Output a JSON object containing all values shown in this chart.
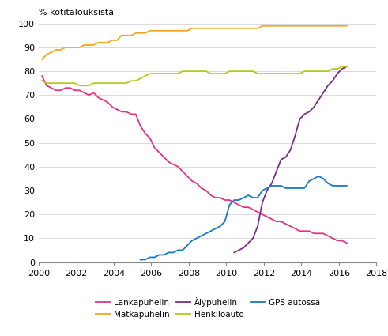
{
  "title": "% kotitalouksista",
  "xlim": [
    2000,
    2018
  ],
  "ylim": [
    0,
    100
  ],
  "xticks": [
    2000,
    2002,
    2004,
    2006,
    2008,
    2010,
    2012,
    2014,
    2016,
    2018
  ],
  "yticks": [
    0,
    10,
    20,
    30,
    40,
    50,
    60,
    70,
    80,
    90,
    100
  ],
  "legend": [
    "Lankapuhelin",
    "Matkapuhelin",
    "Älypuhelin",
    "Henkilöauto",
    "GPS autossa"
  ],
  "colors": {
    "Lankapuhelin": "#e8318a",
    "Matkapuhelin": "#f5a623",
    "Alypuhelin": "#7b2d8b",
    "Henkiloauto": "#b5c918",
    "GPS": "#1a78bf"
  },
  "Lankapuhelin": {
    "x": [
      2000.17,
      2000.42,
      2000.67,
      2000.92,
      2001.17,
      2001.42,
      2001.67,
      2001.92,
      2002.17,
      2002.42,
      2002.67,
      2002.92,
      2003.17,
      2003.42,
      2003.67,
      2003.92,
      2004.17,
      2004.42,
      2004.67,
      2004.92,
      2005.17,
      2005.42,
      2005.67,
      2005.92,
      2006.17,
      2006.42,
      2006.67,
      2006.92,
      2007.17,
      2007.42,
      2007.67,
      2007.92,
      2008.17,
      2008.42,
      2008.67,
      2008.92,
      2009.17,
      2009.42,
      2009.67,
      2009.92,
      2010.17,
      2010.42,
      2010.67,
      2010.92,
      2011.17,
      2011.42,
      2011.67,
      2011.92,
      2012.17,
      2012.42,
      2012.67,
      2012.92,
      2013.17,
      2013.42,
      2013.67,
      2013.92,
      2014.17,
      2014.42,
      2014.67,
      2014.92,
      2015.17,
      2015.42,
      2015.67,
      2015.92,
      2016.17,
      2016.42
    ],
    "y": [
      78,
      74,
      73,
      72,
      72,
      73,
      73,
      72,
      72,
      71,
      70,
      71,
      69,
      68,
      67,
      65,
      64,
      63,
      63,
      62,
      62,
      57,
      54,
      52,
      48,
      46,
      44,
      42,
      41,
      40,
      38,
      36,
      34,
      33,
      31,
      30,
      28,
      27,
      27,
      26,
      26,
      25,
      24,
      23,
      23,
      22,
      21,
      20,
      19,
      18,
      17,
      17,
      16,
      15,
      14,
      13,
      13,
      13,
      12,
      12,
      12,
      11,
      10,
      9,
      9,
      8
    ]
  },
  "Matkapuhelin": {
    "x": [
      2000.17,
      2000.42,
      2000.67,
      2000.92,
      2001.17,
      2001.42,
      2001.67,
      2001.92,
      2002.17,
      2002.42,
      2002.67,
      2002.92,
      2003.17,
      2003.42,
      2003.67,
      2003.92,
      2004.17,
      2004.42,
      2004.67,
      2004.92,
      2005.17,
      2005.42,
      2005.67,
      2005.92,
      2006.17,
      2006.42,
      2006.67,
      2006.92,
      2007.17,
      2007.42,
      2007.67,
      2007.92,
      2008.17,
      2008.42,
      2008.67,
      2008.92,
      2009.17,
      2009.42,
      2009.67,
      2009.92,
      2010.17,
      2010.42,
      2010.67,
      2010.92,
      2011.17,
      2011.42,
      2011.67,
      2011.92,
      2012.17,
      2012.42,
      2012.67,
      2012.92,
      2013.17,
      2013.42,
      2013.67,
      2013.92,
      2014.17,
      2014.42,
      2014.67,
      2014.92,
      2015.17,
      2015.42,
      2015.67,
      2015.92,
      2016.17,
      2016.42
    ],
    "y": [
      85,
      87,
      88,
      89,
      89,
      90,
      90,
      90,
      90,
      91,
      91,
      91,
      92,
      92,
      92,
      93,
      93,
      95,
      95,
      95,
      96,
      96,
      96,
      97,
      97,
      97,
      97,
      97,
      97,
      97,
      97,
      97,
      98,
      98,
      98,
      98,
      98,
      98,
      98,
      98,
      98,
      98,
      98,
      98,
      98,
      98,
      98,
      99,
      99,
      99,
      99,
      99,
      99,
      99,
      99,
      99,
      99,
      99,
      99,
      99,
      99,
      99,
      99,
      99,
      99,
      99
    ]
  },
  "Alypuhelin": {
    "x": [
      2010.42,
      2010.67,
      2010.92,
      2011.17,
      2011.42,
      2011.67,
      2011.92,
      2012.17,
      2012.42,
      2012.67,
      2012.92,
      2013.17,
      2013.42,
      2013.67,
      2013.92,
      2014.17,
      2014.42,
      2014.67,
      2014.92,
      2015.17,
      2015.42,
      2015.67,
      2015.92,
      2016.17,
      2016.42
    ],
    "y": [
      4,
      5,
      6,
      8,
      10,
      15,
      25,
      30,
      33,
      38,
      43,
      44,
      47,
      53,
      60,
      62,
      63,
      65,
      68,
      71,
      74,
      76,
      79,
      81,
      82
    ]
  },
  "Henkiloauto": {
    "x": [
      2000.17,
      2000.42,
      2000.67,
      2000.92,
      2001.17,
      2001.42,
      2001.67,
      2001.92,
      2002.17,
      2002.42,
      2002.67,
      2002.92,
      2003.17,
      2003.42,
      2003.67,
      2003.92,
      2004.17,
      2004.42,
      2004.67,
      2004.92,
      2005.17,
      2005.42,
      2005.67,
      2005.92,
      2006.17,
      2006.42,
      2006.67,
      2006.92,
      2007.17,
      2007.42,
      2007.67,
      2007.92,
      2008.17,
      2008.42,
      2008.67,
      2008.92,
      2009.17,
      2009.42,
      2009.67,
      2009.92,
      2010.17,
      2010.42,
      2010.67,
      2010.92,
      2011.17,
      2011.42,
      2011.67,
      2011.92,
      2012.17,
      2012.42,
      2012.67,
      2012.92,
      2013.17,
      2013.42,
      2013.67,
      2013.92,
      2014.17,
      2014.42,
      2014.67,
      2014.92,
      2015.17,
      2015.42,
      2015.67,
      2015.92,
      2016.17,
      2016.42
    ],
    "y": [
      76,
      75,
      75,
      75,
      75,
      75,
      75,
      75,
      74,
      74,
      74,
      75,
      75,
      75,
      75,
      75,
      75,
      75,
      75,
      76,
      76,
      77,
      78,
      79,
      79,
      79,
      79,
      79,
      79,
      79,
      80,
      80,
      80,
      80,
      80,
      80,
      79,
      79,
      79,
      79,
      80,
      80,
      80,
      80,
      80,
      80,
      79,
      79,
      79,
      79,
      79,
      79,
      79,
      79,
      79,
      79,
      80,
      80,
      80,
      80,
      80,
      80,
      81,
      81,
      82,
      82
    ]
  },
  "GPS": {
    "x": [
      2005.42,
      2005.67,
      2005.92,
      2006.17,
      2006.42,
      2006.67,
      2006.92,
      2007.17,
      2007.42,
      2007.67,
      2007.92,
      2008.17,
      2008.42,
      2008.67,
      2008.92,
      2009.17,
      2009.42,
      2009.67,
      2009.92,
      2010.17,
      2010.42,
      2010.67,
      2010.92,
      2011.17,
      2011.42,
      2011.67,
      2011.92,
      2012.17,
      2012.42,
      2012.67,
      2012.92,
      2013.17,
      2013.42,
      2013.67,
      2013.92,
      2014.17,
      2014.42,
      2014.67,
      2014.92,
      2015.17,
      2015.42,
      2015.67,
      2015.92,
      2016.17,
      2016.42
    ],
    "y": [
      1,
      1,
      2,
      2,
      3,
      3,
      4,
      4,
      5,
      5,
      7,
      9,
      10,
      11,
      12,
      13,
      14,
      15,
      17,
      24,
      26,
      26,
      27,
      28,
      27,
      27,
      30,
      31,
      32,
      32,
      32,
      31,
      31,
      31,
      31,
      31,
      34,
      35,
      36,
      35,
      33,
      32,
      32,
      32,
      32
    ]
  }
}
